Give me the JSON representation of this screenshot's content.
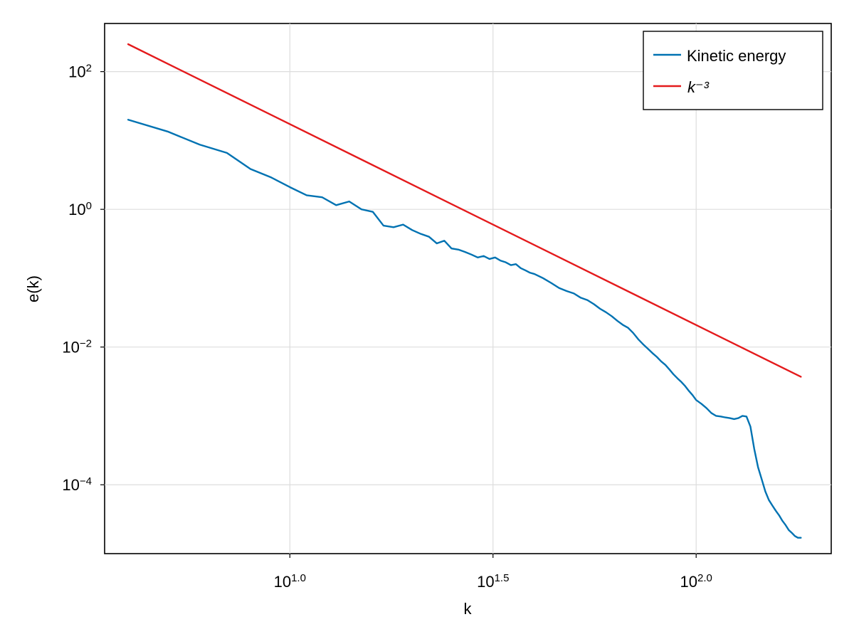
{
  "chart_data": {
    "type": "line",
    "title": "",
    "xlabel": "k",
    "ylabel": "e(k)",
    "x_scale": "log10",
    "y_scale": "log10",
    "xlim": [
      3.5,
      215
    ],
    "ylim": [
      1e-05,
      500
    ],
    "x_ticks": [
      {
        "value": 10,
        "base": "10",
        "exp": "1.0"
      },
      {
        "value": 31.6228,
        "base": "10",
        "exp": "1.5"
      },
      {
        "value": 100,
        "base": "10",
        "exp": "2.0"
      }
    ],
    "y_ticks": [
      {
        "value": 100,
        "base": "10",
        "exp": "2"
      },
      {
        "value": 1,
        "base": "10",
        "exp": "0"
      },
      {
        "value": 0.01,
        "base": "10",
        "exp": "−2"
      },
      {
        "value": 0.0001,
        "base": "10",
        "exp": "−4"
      }
    ],
    "grid": true,
    "legend_position": "top-right",
    "series": [
      {
        "name": "Kinetic energy",
        "color": "#0072b2",
        "x": [
          4.0,
          5.0,
          6.0,
          7.0,
          8.0,
          9.0,
          10.0,
          11.0,
          12.0,
          13.0,
          14.0,
          15.0,
          16.0,
          17.0,
          18.0,
          19.0,
          20.0,
          21.0,
          22.0,
          23.0,
          24.0,
          25.0,
          26.0,
          27.0,
          28.0,
          29.0,
          30.0,
          31.0,
          32.0,
          33.0,
          34.0,
          35.0,
          36.0,
          37.0,
          38.0,
          39.0,
          40.0,
          42.0,
          44.0,
          46.0,
          48.0,
          50.0,
          52.0,
          54.0,
          56.0,
          58.0,
          60.0,
          62.0,
          64.0,
          66.0,
          68.0,
          70.0,
          72.0,
          74.0,
          76.0,
          78.0,
          80.0,
          82.0,
          84.0,
          86.0,
          88.0,
          90.0,
          92.0,
          94.0,
          96.0,
          98.0,
          100.0,
          103.0,
          106.0,
          109.0,
          112.0,
          115.0,
          118.0,
          121.0,
          124.0,
          127.0,
          130.0,
          133.0,
          136.0,
          139.0,
          142.0,
          145.0,
          148.0,
          151.0,
          154.0,
          157.0,
          160.0,
          163.0,
          166.0,
          169.0,
          172.0,
          175.0,
          178.0,
          181.0
        ],
        "y": [
          20.0,
          13.5,
          8.7,
          6.6,
          3.85,
          2.9,
          2.1,
          1.6,
          1.5,
          1.15,
          1.3,
          1.0,
          0.92,
          0.58,
          0.55,
          0.6,
          0.5,
          0.44,
          0.4,
          0.32,
          0.35,
          0.27,
          0.26,
          0.24,
          0.22,
          0.2,
          0.21,
          0.19,
          0.2,
          0.18,
          0.17,
          0.155,
          0.16,
          0.14,
          0.13,
          0.12,
          0.115,
          0.1,
          0.085,
          0.072,
          0.065,
          0.06,
          0.052,
          0.048,
          0.042,
          0.036,
          0.032,
          0.028,
          0.024,
          0.021,
          0.019,
          0.016,
          0.013,
          0.011,
          0.0095,
          0.0082,
          0.0072,
          0.0062,
          0.0055,
          0.0047,
          0.004,
          0.0035,
          0.0031,
          0.0027,
          0.0023,
          0.002,
          0.0017,
          0.0015,
          0.0013,
          0.0011,
          0.001,
          0.00098,
          0.00095,
          0.00093,
          0.0009,
          0.00093,
          0.001,
          0.00098,
          0.0007,
          0.00033,
          0.00018,
          0.00012,
          8e-05,
          6e-05,
          5e-05,
          4.2e-05,
          3.6e-05,
          3e-05,
          2.6e-05,
          2.2e-05,
          2e-05,
          1.8e-05,
          1.7e-05,
          1.7e-05
        ]
      },
      {
        "name": "k⁻³",
        "color": "#e41a1c",
        "x": [
          4.0,
          181.0
        ],
        "y": [
          250.0,
          0.0037
        ]
      }
    ]
  }
}
